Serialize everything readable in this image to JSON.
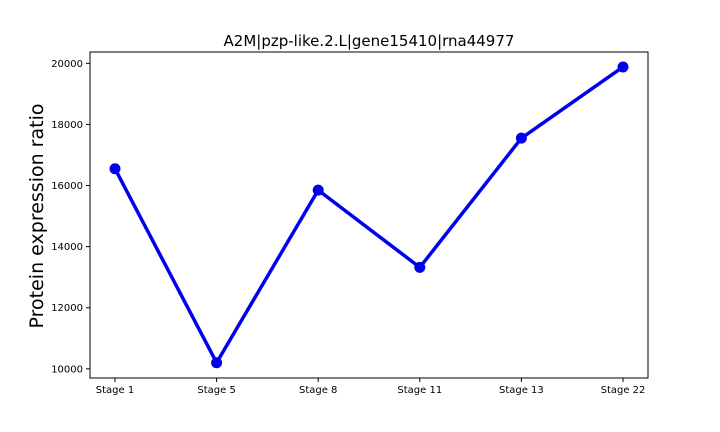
{
  "chart_data": {
    "type": "line",
    "title": "A2M|pzp-like.2.L|gene15410|rna44977",
    "xlabel": "",
    "ylabel": "Protein expression ratio",
    "categories": [
      "Stage 1",
      "Stage 5",
      "Stage 8",
      "Stage 11",
      "Stage 13",
      "Stage 22"
    ],
    "series": [
      {
        "values": [
          16550,
          10200,
          15850,
          13320,
          17550,
          19880
        ]
      }
    ],
    "yticks": [
      10000,
      12000,
      14000,
      16000,
      18000,
      20000
    ],
    "ytick_labels": [
      "10000",
      "12000",
      "14000",
      "16000",
      "18000",
      "20000"
    ],
    "ylim": [
      9700,
      20370
    ],
    "grid": false,
    "legend": "none",
    "colors": {
      "line": "#0000ee",
      "marker": "#0000ee"
    }
  }
}
